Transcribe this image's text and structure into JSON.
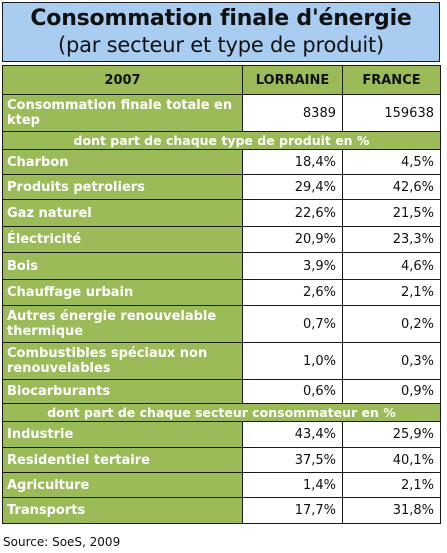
{
  "header": {
    "title": "Consommation finale d'énergie",
    "subtitle": "(par secteur et type de produit)"
  },
  "table": {
    "columns": [
      "2007",
      "LORRAINE",
      "FRANCE"
    ],
    "total": {
      "label": "Consommation finale totale en ktep",
      "lorraine": "8389",
      "france": "159638"
    },
    "section_products": "dont part de chaque type de produit en %",
    "products": [
      {
        "label": "Charbon",
        "lorraine": "18,4%",
        "france": "4,5%"
      },
      {
        "label": "Produits petroliers",
        "lorraine": "29,4%",
        "france": "42,6%"
      },
      {
        "label": "Gaz naturel",
        "lorraine": "22,6%",
        "france": "21,5%"
      },
      {
        "label": "Électricité",
        "lorraine": "20,9%",
        "france": "23,3%"
      },
      {
        "label": "Bois",
        "lorraine": "3,9%",
        "france": "4,6%"
      },
      {
        "label": "Chauffage urbain",
        "lorraine": "2,6%",
        "france": "2,1%"
      },
      {
        "label": "Autres énergie renouvelable thermique",
        "lorraine": "0,7%",
        "france": "0,2%"
      },
      {
        "label": "Combustibles spéciaux non renouvelables",
        "lorraine": "1,0%",
        "france": "0,3%"
      },
      {
        "label": "Biocarburants",
        "lorraine": "0,6%",
        "france": "0,9%"
      }
    ],
    "section_sectors": "dont part de chaque secteur consommateur en %",
    "sectors": [
      {
        "label": "Industrie",
        "lorraine": "43,4%",
        "france": "25,9%"
      },
      {
        "label": "Residentiel tertaire",
        "lorraine": "37,5%",
        "france": "40,1%"
      },
      {
        "label": "Agriculture",
        "lorraine": "1,4%",
        "france": "2,1%"
      },
      {
        "label": "Transports",
        "lorraine": "17,7%",
        "france": "31,8%"
      }
    ]
  },
  "source": "Source: SoeS, 2009",
  "colors": {
    "title_bg": "#a8cdf0",
    "header_green": "#9bbb59",
    "border": "#1a1a1a"
  }
}
